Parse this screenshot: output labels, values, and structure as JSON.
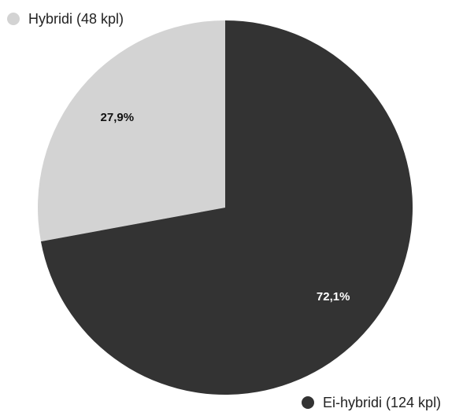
{
  "chart_data": {
    "type": "pie",
    "categories": [
      "Hybridi (48 kpl)",
      "Ei-hybridi (124 kpl)"
    ],
    "values": [
      27.9,
      72.1
    ],
    "value_labels": [
      "27,9%",
      "72,1%"
    ],
    "colors": [
      "#d3d3d3",
      "#333333"
    ]
  }
}
